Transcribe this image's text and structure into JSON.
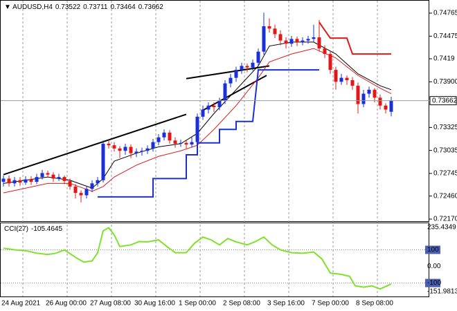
{
  "chart_data": [
    {
      "type": "candlestick",
      "title": "AUDUSD,H4",
      "up_color": "#1a2fd6",
      "down_color": "#e01818",
      "categories": [
        "24 Aug 2021",
        null,
        null,
        null,
        null,
        null,
        null,
        null,
        "26 Aug 00:00",
        null,
        null,
        null,
        null,
        null,
        null,
        null,
        "27 Aug 08:00",
        null,
        null,
        null,
        null,
        null,
        null,
        null,
        "30 Aug 16:00",
        null,
        null,
        null,
        null,
        null,
        null,
        null,
        "1 Sep 00:00",
        null,
        null,
        null,
        null,
        null,
        null,
        null,
        "2 Sep 08:00",
        null,
        null,
        null,
        null,
        null,
        null,
        null,
        "3 Sep 16:00",
        null,
        null,
        null,
        null,
        null,
        null,
        null,
        "7 Sep 00:00",
        null,
        null,
        null,
        null,
        null,
        null,
        null,
        "8 Sep 08:00",
        null,
        null,
        null,
        null,
        null,
        null
      ],
      "open": [
        0.7264,
        0.7268,
        0.7262,
        0.7266,
        0.7263,
        0.7267,
        0.7264,
        0.727,
        0.7275,
        0.7273,
        0.7268,
        0.727,
        0.7265,
        0.7258,
        0.725,
        0.7247,
        0.7255,
        0.7262,
        0.7266,
        0.7312,
        0.731,
        0.7306,
        0.7303,
        0.7308,
        0.73,
        0.7302,
        0.7303,
        0.7306,
        0.7314,
        0.732,
        0.7326,
        0.7316,
        0.7312,
        0.7313,
        0.7311,
        0.7314,
        0.7346,
        0.7355,
        0.736,
        0.7358,
        0.7366,
        0.7388,
        0.7395,
        0.7405,
        0.741,
        0.7408,
        0.7414,
        0.7428,
        0.746,
        0.7457,
        0.745,
        0.7442,
        0.7438,
        0.7444,
        0.744,
        0.7442,
        0.7444,
        0.7446,
        0.7432,
        0.7425,
        0.7405,
        0.739,
        0.7395,
        0.7392,
        0.7385,
        0.7362,
        0.7375,
        0.738,
        0.737,
        0.736,
        0.73522
      ],
      "high": [
        0.7272,
        0.7272,
        0.727,
        0.727,
        0.7271,
        0.7271,
        0.7274,
        0.7279,
        0.7278,
        0.7276,
        0.7274,
        0.7272,
        0.7268,
        0.7261,
        0.7253,
        0.7259,
        0.7266,
        0.727,
        0.7316,
        0.7317,
        0.7314,
        0.7309,
        0.7312,
        0.7311,
        0.7306,
        0.7307,
        0.731,
        0.7318,
        0.7324,
        0.733,
        0.7329,
        0.732,
        0.7317,
        0.7316,
        0.732,
        0.735,
        0.736,
        0.7364,
        0.7364,
        0.737,
        0.7392,
        0.74,
        0.7409,
        0.7414,
        0.7413,
        0.7418,
        0.7432,
        0.7477,
        0.747,
        0.7462,
        0.7455,
        0.7446,
        0.7448,
        0.7447,
        0.7446,
        0.7448,
        0.7462,
        0.7468,
        0.7436,
        0.7428,
        0.7409,
        0.74,
        0.7398,
        0.7396,
        0.7389,
        0.738,
        0.7384,
        0.7382,
        0.7374,
        0.7363,
        0.73711
      ],
      "low": [
        0.7258,
        0.7258,
        0.7258,
        0.7259,
        0.726,
        0.726,
        0.7261,
        0.7267,
        0.7269,
        0.7264,
        0.7265,
        0.7261,
        0.7254,
        0.7243,
        0.7238,
        0.7243,
        0.7251,
        0.7258,
        0.7263,
        0.7306,
        0.7302,
        0.7294,
        0.7298,
        0.7294,
        0.7295,
        0.7297,
        0.7299,
        0.7302,
        0.731,
        0.7316,
        0.7312,
        0.7307,
        0.7308,
        0.7306,
        0.7307,
        0.731,
        0.7342,
        0.735,
        0.7352,
        0.7354,
        0.7362,
        0.7383,
        0.739,
        0.74,
        0.7402,
        0.7404,
        0.741,
        0.7424,
        0.7452,
        0.7445,
        0.7436,
        0.7432,
        0.7434,
        0.7435,
        0.7436,
        0.7438,
        0.744,
        0.7428,
        0.742,
        0.74,
        0.738,
        0.7386,
        0.7386,
        0.738,
        0.735,
        0.7358,
        0.737,
        0.7364,
        0.7355,
        0.735,
        0.73464
      ],
      "close": [
        0.7268,
        0.7262,
        0.7266,
        0.7263,
        0.7267,
        0.7264,
        0.727,
        0.7275,
        0.7273,
        0.7268,
        0.727,
        0.7265,
        0.7258,
        0.725,
        0.7247,
        0.7255,
        0.7262,
        0.7266,
        0.7312,
        0.731,
        0.7306,
        0.7303,
        0.7308,
        0.73,
        0.7302,
        0.7303,
        0.7306,
        0.7314,
        0.732,
        0.7326,
        0.7316,
        0.7312,
        0.7313,
        0.7311,
        0.7314,
        0.7346,
        0.7355,
        0.736,
        0.7358,
        0.7366,
        0.7388,
        0.7395,
        0.7405,
        0.741,
        0.7408,
        0.7414,
        0.7428,
        0.746,
        0.7457,
        0.745,
        0.7442,
        0.7438,
        0.7444,
        0.744,
        0.7442,
        0.7444,
        0.7446,
        0.7432,
        0.7425,
        0.7405,
        0.739,
        0.7395,
        0.7392,
        0.7385,
        0.7362,
        0.7375,
        0.738,
        0.737,
        0.736,
        0.7355,
        0.73662
      ],
      "overlays": [
        {
          "color": "#000000",
          "x": [
            0,
            4,
            8,
            12,
            16,
            18,
            20,
            24,
            28,
            32,
            35,
            38,
            42,
            46,
            48,
            52,
            56,
            60,
            64,
            68,
            70
          ],
          "values": [
            0.7262,
            0.7266,
            0.727,
            0.7266,
            0.7256,
            0.7268,
            0.729,
            0.73,
            0.7308,
            0.7312,
            0.7325,
            0.735,
            0.738,
            0.741,
            0.7435,
            0.744,
            0.744,
            0.7425,
            0.74,
            0.7385,
            0.738
          ]
        },
        {
          "color": "#e01818",
          "x": [
            0,
            4,
            8,
            12,
            16,
            18,
            20,
            24,
            28,
            32,
            35,
            38,
            42,
            46,
            48,
            52,
            56,
            60,
            64,
            68,
            70
          ],
          "values": [
            0.725,
            0.7256,
            0.7262,
            0.7262,
            0.7252,
            0.7258,
            0.727,
            0.7285,
            0.7296,
            0.7303,
            0.731,
            0.733,
            0.736,
            0.7395,
            0.7415,
            0.7425,
            0.7432,
            0.742,
            0.7398,
            0.7382,
            0.7375
          ]
        },
        {
          "color": "#1a2fd6",
          "x": [
            17,
            27,
            27,
            33,
            33,
            35,
            35,
            39,
            39,
            42,
            42,
            45,
            46,
            57
          ],
          "values": [
            0.7245,
            0.7245,
            0.7268,
            0.7268,
            0.7298,
            0.7298,
            0.7313,
            0.7313,
            0.733,
            0.733,
            0.734,
            0.734,
            0.7405,
            0.7405
          ]
        },
        {
          "color": "#e01818",
          "x": [
            57,
            59,
            59,
            62,
            63,
            70
          ],
          "values": [
            0.7465,
            0.7445,
            0.7445,
            0.7445,
            0.7425,
            0.7425
          ]
        }
      ],
      "trendlines": [
        {
          "color": "#000000",
          "x": [
            0,
            33
          ],
          "values": [
            0.7273,
            0.7349
          ]
        },
        {
          "color": "#000000",
          "x": [
            33,
            48
          ],
          "values": [
            0.7394,
            0.741
          ]
        },
        {
          "color": "#000000",
          "x": [
            36,
            47.5
          ],
          "values": [
            0.7354,
            0.7398
          ]
        }
      ],
      "ylim": [
        0.7217,
        0.74765
      ],
      "yticks": [
        0.74765,
        0.74475,
        0.7419,
        {
          "value": 0.739,
          "label": "0.73900"
        },
        0.73325,
        0.73035,
        0.72745,
        {
          "value": 0.7246,
          "label": "0.72460"
        },
        {
          "value": 0.7217,
          "label": "0.72170"
        }
      ]
    },
    {
      "type": "line",
      "title": "CCI(27)",
      "color": "#7fe22a",
      "x": [
        0,
        2,
        4,
        6,
        8,
        9.5,
        11,
        13,
        14.5,
        16,
        17,
        18,
        19,
        20,
        21,
        23,
        24.5,
        26,
        28,
        29.5,
        31,
        33,
        34.5,
        36,
        37.5,
        39,
        40.5,
        42,
        44,
        45.5,
        47,
        48.5,
        50,
        52,
        54,
        56,
        57.5,
        59,
        61,
        62.5,
        63.5,
        65,
        66.5,
        68,
        70
      ],
      "values": [
        110,
        100,
        95,
        80,
        72,
        80,
        100,
        55,
        26,
        33,
        82,
        215,
        233,
        190,
        120,
        130,
        150,
        148,
        160,
        120,
        83,
        83,
        140,
        177,
        160,
        130,
        168,
        148,
        130,
        150,
        177,
        130,
        100,
        83,
        80,
        87,
        45,
        -40,
        -48,
        -60,
        -117,
        -125,
        -117,
        -136,
        -105.4645
      ],
      "levels": [
        100,
        -100
      ],
      "ylim": [
        -151.9813,
        235.4349
      ],
      "yticks": [
        235.4349,
        100,
        {
          "value": 0,
          "label": "0.00"
        },
        -100,
        -151.9813
      ]
    }
  ]
}
